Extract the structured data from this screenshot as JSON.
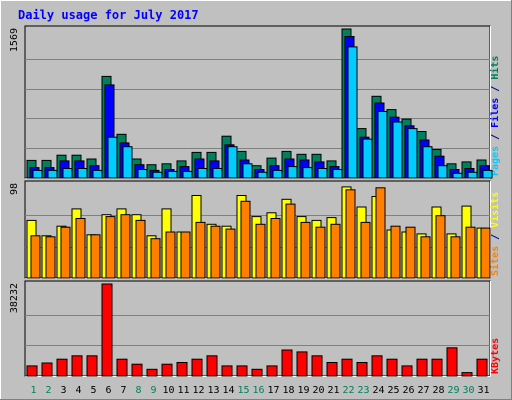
{
  "chart_data": {
    "type": "bar",
    "title": "Daily usage for July 2017",
    "categories": [
      "1",
      "2",
      "3",
      "4",
      "5",
      "6",
      "7",
      "8",
      "9",
      "10",
      "11",
      "12",
      "13",
      "14",
      "15",
      "16",
      "17",
      "18",
      "19",
      "20",
      "21",
      "22",
      "23",
      "24",
      "25",
      "26",
      "27",
      "28",
      "29",
      "30",
      "31"
    ],
    "weekend_days": [
      "1",
      "2",
      "8",
      "9",
      "15",
      "16",
      "22",
      "23",
      "29",
      "30"
    ],
    "panels": [
      {
        "name": "hits-files-pages",
        "ymax_label": "1569",
        "ymax": 1569,
        "axis_labels": [
          {
            "text": "Pages",
            "color": "#00ccff"
          },
          {
            "text": " / ",
            "color": "#000080"
          },
          {
            "text": "Files",
            "color": "#0000ff"
          },
          {
            "text": " / ",
            "color": "#000080"
          },
          {
            "text": "Hits",
            "color": "#00805c"
          }
        ],
        "series": [
          {
            "name": "Hits",
            "color": "#00805c",
            "values": [
              185,
              185,
              240,
              240,
              200,
              1070,
              460,
              200,
              140,
              150,
              180,
              270,
              270,
              440,
              280,
              130,
              210,
              280,
              250,
              250,
              180,
              1569,
              520,
              860,
              720,
              620,
              490,
              300,
              150,
              170,
              190
            ]
          },
          {
            "name": "Files",
            "color": "#0000ff",
            "values": [
              110,
              110,
              180,
              180,
              130,
              980,
              370,
              140,
              80,
              90,
              120,
              200,
              180,
              350,
              190,
              90,
              130,
              200,
              190,
              170,
              120,
              1490,
              430,
              790,
              640,
              550,
              400,
              230,
              90,
              100,
              130
            ]
          },
          {
            "name": "Pages",
            "color": "#00ccff",
            "values": [
              80,
              80,
              100,
              100,
              80,
              430,
              330,
              90,
              60,
              70,
              70,
              100,
              100,
              330,
              150,
              60,
              80,
              120,
              110,
              100,
              90,
              1380,
              410,
              700,
              590,
              520,
              330,
              130,
              50,
              60,
              80
            ]
          }
        ]
      },
      {
        "name": "visits-sites",
        "ymax_label": "98",
        "ymax": 98,
        "axis_labels": [
          {
            "text": "Sites",
            "color": "#ff8000"
          },
          {
            "text": " / ",
            "color": "#000080"
          },
          {
            "text": "Visits",
            "color": "#ffff00"
          }
        ],
        "series": [
          {
            "name": "Visits",
            "color": "#ffff00",
            "values": [
              60,
              44,
              54,
              72,
              45,
              66,
              72,
              66,
              44,
              72,
              48,
              86,
              56,
              54,
              86,
              64,
              68,
              82,
              64,
              60,
              63,
              95,
              74,
              85,
              50,
              48,
              46,
              74,
              46,
              75,
              52
            ]
          },
          {
            "name": "Sites",
            "color": "#ff8000",
            "values": [
              44,
              43,
              53,
              62,
              45,
              64,
              66,
              60,
              41,
              48,
              48,
              58,
              54,
              51,
              80,
              56,
              62,
              77,
              58,
              53,
              56,
              92,
              58,
              94,
              54,
              53,
              43,
              65,
              43,
              53,
              52
            ]
          }
        ]
      },
      {
        "name": "kbytes",
        "ymax_label": "38232",
        "ymax": 38232,
        "axis_labels": [
          {
            "text": "KBytes",
            "color": "#ff0000"
          }
        ],
        "series": [
          {
            "name": "KBytes",
            "color": "#ff0000",
            "values": [
              4200,
              5400,
              7000,
              8400,
              8400,
              38232,
              7000,
              4900,
              2800,
              4900,
              5600,
              7000,
              8400,
              4200,
              4200,
              2800,
              4200,
              10800,
              10000,
              8400,
              5600,
              7000,
              5600,
              8400,
              7000,
              4200,
              7000,
              7000,
              11700,
              1400,
              7000
            ]
          }
        ]
      }
    ]
  }
}
